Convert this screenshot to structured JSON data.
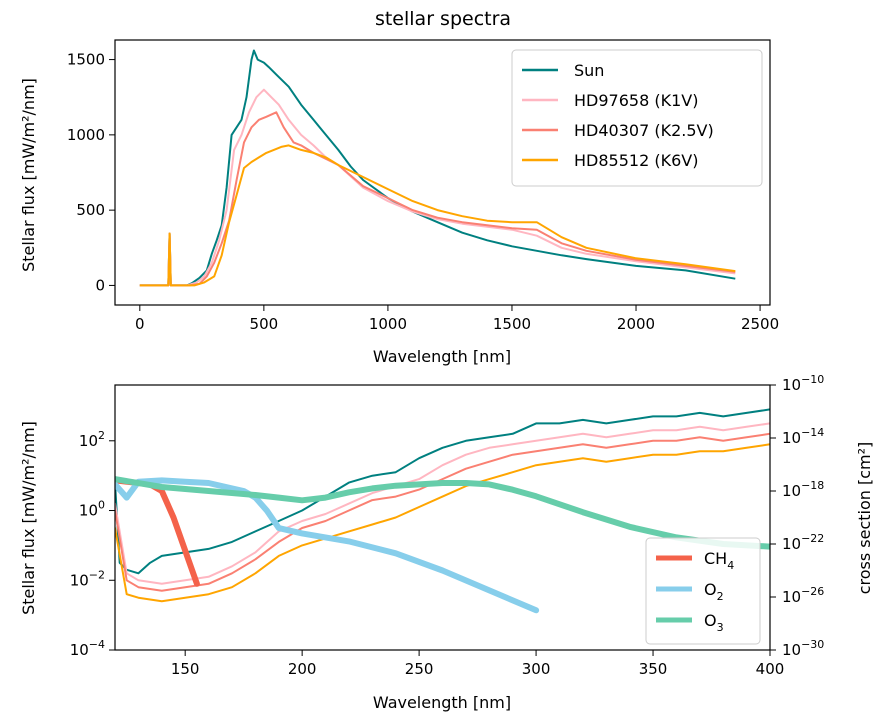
{
  "chart_data": [
    {
      "type": "line",
      "title": "stellar spectra",
      "xlabel": "Wavelength [nm]",
      "ylabel": "Stellar flux  [mW/m²/nm]",
      "xlim": [
        -100,
        2540
      ],
      "ylim": [
        -130,
        1630
      ],
      "xticks": [
        0,
        500,
        1000,
        1500,
        2000,
        2500
      ],
      "yticks": [
        0,
        500,
        1000,
        1500
      ],
      "legend_position": "top-right",
      "series": [
        {
          "name": "Sun",
          "color": "#008080",
          "x": [
            0,
            115,
            120,
            125,
            130,
            190,
            210,
            240,
            270,
            290,
            310,
            330,
            350,
            370,
            390,
            410,
            430,
            450,
            460,
            475,
            500,
            520,
            550,
            600,
            650,
            700,
            750,
            800,
            850,
            900,
            1000,
            1100,
            1200,
            1300,
            1400,
            1500,
            1600,
            1700,
            1800,
            2000,
            2200,
            2400
          ],
          "y": [
            0,
            0,
            345,
            0,
            0,
            0,
            15,
            50,
            100,
            210,
            300,
            400,
            650,
            1000,
            1050,
            1100,
            1250,
            1500,
            1560,
            1500,
            1480,
            1450,
            1400,
            1320,
            1200,
            1100,
            1000,
            900,
            790,
            700,
            580,
            490,
            420,
            350,
            300,
            260,
            230,
            200,
            175,
            130,
            100,
            45
          ]
        },
        {
          "name": "HD97658 (K1V)",
          "color": "#ffb6c1",
          "x": [
            0,
            115,
            120,
            125,
            130,
            190,
            230,
            260,
            290,
            320,
            350,
            380,
            410,
            440,
            470,
            500,
            530,
            560,
            600,
            650,
            700,
            750,
            800,
            900,
            1000,
            1100,
            1200,
            1300,
            1400,
            1500,
            1600,
            1700,
            1800,
            2000,
            2200,
            2400
          ],
          "y": [
            0,
            0,
            345,
            0,
            0,
            0,
            20,
            60,
            150,
            300,
            500,
            900,
            1000,
            1150,
            1250,
            1300,
            1250,
            1200,
            1100,
            1000,
            930,
            850,
            800,
            650,
            560,
            490,
            440,
            410,
            390,
            370,
            330,
            250,
            210,
            160,
            120,
            80
          ]
        },
        {
          "name": "HD40307 (K2.5V)",
          "color": "#fa8072",
          "x": [
            0,
            115,
            120,
            125,
            130,
            200,
            240,
            270,
            300,
            330,
            360,
            390,
            420,
            450,
            480,
            510,
            550,
            580,
            620,
            650,
            700,
            750,
            800,
            900,
            1000,
            1100,
            1200,
            1300,
            1400,
            1500,
            1600,
            1700,
            1800,
            2000,
            2200,
            2400
          ],
          "y": [
            0,
            0,
            345,
            0,
            0,
            0,
            10,
            60,
            150,
            280,
            430,
            700,
            950,
            1050,
            1100,
            1120,
            1150,
            1050,
            950,
            930,
            880,
            840,
            800,
            660,
            580,
            500,
            450,
            420,
            400,
            380,
            370,
            280,
            230,
            170,
            130,
            90
          ]
        },
        {
          "name": "HD85512 (K6V)",
          "color": "#ffa500",
          "x": [
            0,
            115,
            120,
            125,
            130,
            220,
            260,
            300,
            330,
            360,
            390,
            420,
            450,
            480,
            510,
            540,
            570,
            600,
            650,
            700,
            750,
            800,
            850,
            900,
            1000,
            1100,
            1200,
            1300,
            1400,
            1500,
            1600,
            1700,
            1800,
            2000,
            2200,
            2400
          ],
          "y": [
            0,
            0,
            345,
            0,
            0,
            0,
            20,
            60,
            200,
            420,
            600,
            780,
            820,
            850,
            880,
            900,
            920,
            930,
            900,
            880,
            850,
            800,
            760,
            720,
            640,
            560,
            500,
            460,
            430,
            420,
            420,
            320,
            250,
            180,
            140,
            95
          ]
        }
      ]
    },
    {
      "type": "line",
      "title": "",
      "xlabel": "Wavelength [nm]",
      "ylabel": "Stellar flux [mW/m²/nm]",
      "y2label": "cross section [cm²]",
      "xlim": [
        120,
        400
      ],
      "ylim_log10": [
        -4,
        3.6
      ],
      "y2lim_log10": [
        -30,
        -10
      ],
      "xticks": [
        150,
        200,
        250,
        300,
        350,
        400
      ],
      "yticks_log10": [
        -4,
        -2,
        0,
        2
      ],
      "y2ticks_log10": [
        -30,
        -26,
        -22,
        -18,
        -14,
        -10
      ],
      "legend_position": "bottom-right",
      "series": [
        {
          "name": "Sun",
          "axis": "left",
          "color": "#008080",
          "x": [
            120,
            122,
            125,
            130,
            135,
            140,
            150,
            160,
            170,
            180,
            190,
            200,
            210,
            220,
            230,
            240,
            250,
            260,
            270,
            280,
            290,
            300,
            310,
            320,
            330,
            340,
            350,
            360,
            370,
            380,
            390,
            400
          ],
          "y_log10": [
            0.8,
            -1.5,
            -1.7,
            -1.8,
            -1.5,
            -1.3,
            -1.2,
            -1.1,
            -0.9,
            -0.6,
            -0.3,
            0,
            0.4,
            0.8,
            1.0,
            1.1,
            1.5,
            1.8,
            2.0,
            2.1,
            2.2,
            2.5,
            2.5,
            2.6,
            2.5,
            2.6,
            2.7,
            2.7,
            2.8,
            2.7,
            2.8,
            2.9
          ]
        },
        {
          "name": "HD97658 (K1V)",
          "axis": "left",
          "color": "#ffb6c1",
          "x": [
            120,
            125,
            130,
            140,
            150,
            160,
            170,
            180,
            190,
            200,
            210,
            220,
            230,
            240,
            250,
            260,
            270,
            280,
            290,
            300,
            310,
            320,
            330,
            340,
            350,
            360,
            370,
            380,
            390,
            400
          ],
          "y_log10": [
            0.2,
            -1.8,
            -2.0,
            -2.1,
            -2.0,
            -1.9,
            -1.6,
            -1.2,
            -0.6,
            -0.3,
            -0.1,
            0.2,
            0.5,
            0.7,
            0.9,
            1.3,
            1.6,
            1.8,
            1.9,
            2.0,
            2.1,
            2.2,
            2.1,
            2.2,
            2.3,
            2.3,
            2.4,
            2.3,
            2.4,
            2.5
          ]
        },
        {
          "name": "HD40307 (K2.5V)",
          "axis": "left",
          "color": "#fa8072",
          "x": [
            120,
            125,
            130,
            140,
            150,
            160,
            170,
            180,
            190,
            200,
            210,
            220,
            230,
            240,
            250,
            260,
            270,
            280,
            290,
            300,
            310,
            320,
            330,
            340,
            350,
            360,
            370,
            380,
            390,
            400
          ],
          "y_log10": [
            0.0,
            -2.0,
            -2.2,
            -2.3,
            -2.2,
            -2.1,
            -1.8,
            -1.4,
            -0.9,
            -0.5,
            -0.3,
            0,
            0.3,
            0.4,
            0.6,
            0.9,
            1.2,
            1.4,
            1.6,
            1.7,
            1.8,
            1.9,
            1.8,
            1.9,
            2.0,
            2.0,
            2.1,
            2.0,
            2.1,
            2.2
          ]
        },
        {
          "name": "HD85512 (K6V)",
          "axis": "left",
          "color": "#ffa500",
          "x": [
            120,
            125,
            130,
            140,
            150,
            160,
            170,
            180,
            190,
            200,
            210,
            220,
            230,
            240,
            250,
            260,
            270,
            280,
            290,
            300,
            310,
            320,
            330,
            340,
            350,
            360,
            370,
            380,
            390,
            400
          ],
          "y_log10": [
            -0.5,
            -2.4,
            -2.5,
            -2.6,
            -2.5,
            -2.4,
            -2.2,
            -1.8,
            -1.3,
            -1.0,
            -0.8,
            -0.6,
            -0.4,
            -0.2,
            0.1,
            0.4,
            0.7,
            0.9,
            1.1,
            1.3,
            1.4,
            1.5,
            1.4,
            1.5,
            1.6,
            1.6,
            1.7,
            1.7,
            1.8,
            1.9
          ]
        },
        {
          "name": "CH4",
          "axis": "right",
          "color": "#f4624a",
          "x": [
            120,
            130,
            135,
            140,
            145,
            150,
            155
          ],
          "y_log10": [
            -17.2,
            -17.4,
            -17.5,
            -18.0,
            -20.0,
            -22.5,
            -25.0
          ]
        },
        {
          "name": "O2",
          "axis": "right",
          "color": "#87ceeb",
          "x": [
            120,
            125,
            130,
            140,
            150,
            160,
            170,
            175,
            180,
            185,
            190,
            200,
            220,
            240,
            260,
            280,
            300
          ],
          "y_log10": [
            -17.5,
            -18.5,
            -17.3,
            -17.2,
            -17.3,
            -17.4,
            -17.8,
            -18.0,
            -18.5,
            -19.5,
            -20.8,
            -21.2,
            -21.8,
            -22.7,
            -24.0,
            -25.5,
            -27.0
          ]
        },
        {
          "name": "O3",
          "axis": "right",
          "color": "#66cdaa",
          "x": [
            120,
            140,
            160,
            180,
            190,
            200,
            210,
            220,
            230,
            240,
            250,
            260,
            270,
            280,
            290,
            300,
            320,
            340,
            360,
            380,
            400
          ],
          "y_log10": [
            -17.1,
            -17.7,
            -18.0,
            -18.3,
            -18.5,
            -18.7,
            -18.5,
            -18.1,
            -17.8,
            -17.6,
            -17.5,
            -17.4,
            -17.4,
            -17.5,
            -17.9,
            -18.4,
            -19.6,
            -20.7,
            -21.5,
            -22.0,
            -22.2
          ]
        }
      ]
    }
  ]
}
